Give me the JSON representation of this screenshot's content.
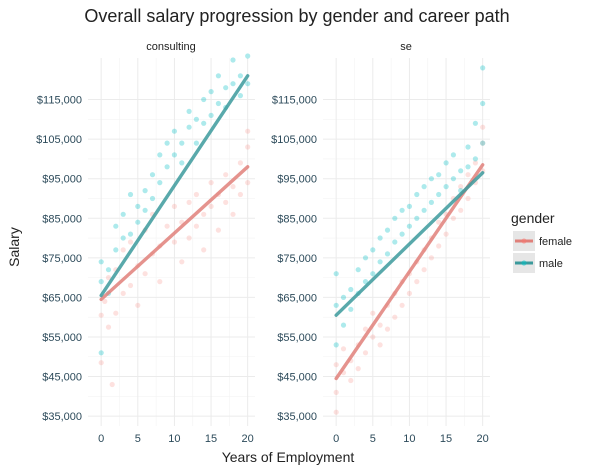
{
  "chart_data": {
    "type": "scatter",
    "title": "Overall salary progression by gender and career path",
    "xlabel": "Years of Employment",
    "ylabel": "Salary",
    "xlim": [
      -1.8,
      21
    ],
    "ylim": [
      32500,
      125500
    ],
    "x_ticks": [
      0,
      5,
      10,
      15,
      20
    ],
    "x_tick_labels": [
      "0",
      "5",
      "10",
      "15",
      "20"
    ],
    "y_ticks": [
      35000,
      45000,
      55000,
      65000,
      75000,
      85000,
      95000,
      105000,
      115000
    ],
    "y_tick_labels": [
      "$35,000",
      "$45,000",
      "$55,000",
      "$65,000",
      "$75,000",
      "$85,000",
      "$95,000",
      "$105,000",
      "$115,000"
    ],
    "grid": true,
    "legend": {
      "title": "gender",
      "position": "right",
      "entries": [
        "female",
        "male"
      ]
    },
    "colors": {
      "female": "#F8766D",
      "male": "#00BFC4",
      "female_line": "#E0807A",
      "male_line": "#3C9A9C"
    },
    "panels": [
      {
        "name": "consulting",
        "series": [
          {
            "name": "female",
            "fit": {
              "x": [
                0,
                20
              ],
              "y": [
                64500,
                98000
              ]
            },
            "points": [
              [
                0,
                60500
              ],
              [
                0,
                48500
              ],
              [
                0.5,
                64000
              ],
              [
                1,
                70000
              ],
              [
                1,
                57500
              ],
              [
                1.5,
                43000
              ],
              [
                2,
                72000
              ],
              [
                2,
                61000
              ],
              [
                3,
                77000
              ],
              [
                3,
                66000
              ],
              [
                4,
                68000
              ],
              [
                4,
                79000
              ],
              [
                5,
                73000
              ],
              [
                5,
                63000
              ],
              [
                6,
                82000
              ],
              [
                6,
                71000
              ],
              [
                7,
                76000
              ],
              [
                7,
                86000
              ],
              [
                8,
                78000
              ],
              [
                8,
                69000
              ],
              [
                9,
                83000
              ],
              [
                10,
                79000
              ],
              [
                10,
                88000
              ],
              [
                11,
                84000
              ],
              [
                11,
                74000
              ],
              [
                12,
                89000
              ],
              [
                12,
                80000
              ],
              [
                13,
                91000
              ],
              [
                13,
                83000
              ],
              [
                14,
                86000
              ],
              [
                14,
                77000
              ],
              [
                15,
                94000
              ],
              [
                15,
                88000
              ],
              [
                16,
                91000
              ],
              [
                16,
                82000
              ],
              [
                17,
                96000
              ],
              [
                17,
                89000
              ],
              [
                18,
                93000
              ],
              [
                18,
                86000
              ],
              [
                19,
                99000
              ],
              [
                19,
                91000
              ],
              [
                20,
                103000
              ],
              [
                20,
                94000
              ],
              [
                20,
                107000
              ]
            ]
          },
          {
            "name": "male",
            "fit": {
              "x": [
                0,
                20
              ],
              "y": [
                65500,
                121000
              ]
            },
            "points": [
              [
                0,
                69000
              ],
              [
                0,
                74000
              ],
              [
                0,
                51000
              ],
              [
                1,
                72000
              ],
              [
                1,
                66000
              ],
              [
                2,
                77000
              ],
              [
                2,
                83000
              ],
              [
                3,
                80000
              ],
              [
                3,
                86000
              ],
              [
                4,
                81000
              ],
              [
                4,
                91000
              ],
              [
                5,
                88000
              ],
              [
                5,
                84000
              ],
              [
                6,
                92000
              ],
              [
                6,
                87000
              ],
              [
                7,
                96000
              ],
              [
                7,
                90000
              ],
              [
                8,
                101000
              ],
              [
                8,
                94000
              ],
              [
                9,
                98000
              ],
              [
                9,
                104000
              ],
              [
                10,
                107000
              ],
              [
                10,
                101000
              ],
              [
                11,
                104000
              ],
              [
                11,
                99000
              ],
              [
                12,
                108000
              ],
              [
                12,
                112000
              ],
              [
                13,
                110000
              ],
              [
                13,
                104000
              ],
              [
                14,
                115000
              ],
              [
                14,
                109000
              ],
              [
                15,
                117000
              ],
              [
                15,
                111000
              ],
              [
                16,
                114000
              ],
              [
                16,
                121000
              ],
              [
                17,
                118000
              ],
              [
                17,
                113000
              ],
              [
                18,
                125000
              ],
              [
                18,
                119000
              ],
              [
                19,
                121000
              ],
              [
                19,
                116000
              ],
              [
                20,
                126000
              ],
              [
                20,
                119000
              ]
            ]
          }
        ]
      },
      {
        "name": "se",
        "series": [
          {
            "name": "female",
            "fit": {
              "x": [
                0,
                20
              ],
              "y": [
                44500,
                98500
              ]
            },
            "points": [
              [
                0,
                41000
              ],
              [
                0,
                36000
              ],
              [
                0,
                48000
              ],
              [
                1,
                46000
              ],
              [
                1,
                52000
              ],
              [
                2,
                44000
              ],
              [
                2,
                49000
              ],
              [
                3,
                53000
              ],
              [
                3,
                47000
              ],
              [
                4,
                57000
              ],
              [
                4,
                51000
              ],
              [
                5,
                55000
              ],
              [
                5,
                61000
              ],
              [
                6,
                58000
              ],
              [
                6,
                53000
              ],
              [
                7,
                63000
              ],
              [
                7,
                57000
              ],
              [
                8,
                66000
              ],
              [
                8,
                60000
              ],
              [
                9,
                69000
              ],
              [
                9,
                63000
              ],
              [
                10,
                71000
              ],
              [
                10,
                66000
              ],
              [
                11,
                74000
              ],
              [
                11,
                69000
              ],
              [
                12,
                77000
              ],
              [
                12,
                72000
              ],
              [
                13,
                80000
              ],
              [
                13,
                75000
              ],
              [
                14,
                84000
              ],
              [
                14,
                78000
              ],
              [
                15,
                86000
              ],
              [
                15,
                81000
              ],
              [
                16,
                90000
              ],
              [
                16,
                85000
              ],
              [
                17,
                93000
              ],
              [
                17,
                87000
              ],
              [
                18,
                96000
              ],
              [
                18,
                90000
              ],
              [
                19,
                99000
              ],
              [
                19,
                94000
              ],
              [
                20,
                104000
              ],
              [
                20,
                97000
              ],
              [
                20,
                108000
              ]
            ]
          },
          {
            "name": "male",
            "fit": {
              "x": [
                0,
                20
              ],
              "y": [
                60500,
                96500
              ]
            },
            "points": [
              [
                0,
                63000
              ],
              [
                0,
                71000
              ],
              [
                0,
                53000
              ],
              [
                1,
                65000
              ],
              [
                1,
                58000
              ],
              [
                2,
                67000
              ],
              [
                2,
                62000
              ],
              [
                3,
                72000
              ],
              [
                3,
                66000
              ],
              [
                4,
                69000
              ],
              [
                4,
                75000
              ],
              [
                5,
                77000
              ],
              [
                5,
                71000
              ],
              [
                6,
                80000
              ],
              [
                6,
                74000
              ],
              [
                7,
                76000
              ],
              [
                7,
                82000
              ],
              [
                8,
                85000
              ],
              [
                8,
                79000
              ],
              [
                9,
                81000
              ],
              [
                9,
                87000
              ],
              [
                10,
                88000
              ],
              [
                10,
                83000
              ],
              [
                11,
                85000
              ],
              [
                11,
                91000
              ],
              [
                12,
                93000
              ],
              [
                12,
                87000
              ],
              [
                13,
                89000
              ],
              [
                13,
                95000
              ],
              [
                14,
                96000
              ],
              [
                14,
                91000
              ],
              [
                15,
                93000
              ],
              [
                15,
                99000
              ],
              [
                16,
                101000
              ],
              [
                16,
                95000
              ],
              [
                17,
                97000
              ],
              [
                17,
                92000
              ],
              [
                18,
                103000
              ],
              [
                18,
                98000
              ],
              [
                19,
                109000
              ],
              [
                19,
                100000
              ],
              [
                20,
                114000
              ],
              [
                20,
                104000
              ],
              [
                20,
                123000
              ]
            ]
          }
        ]
      }
    ]
  }
}
